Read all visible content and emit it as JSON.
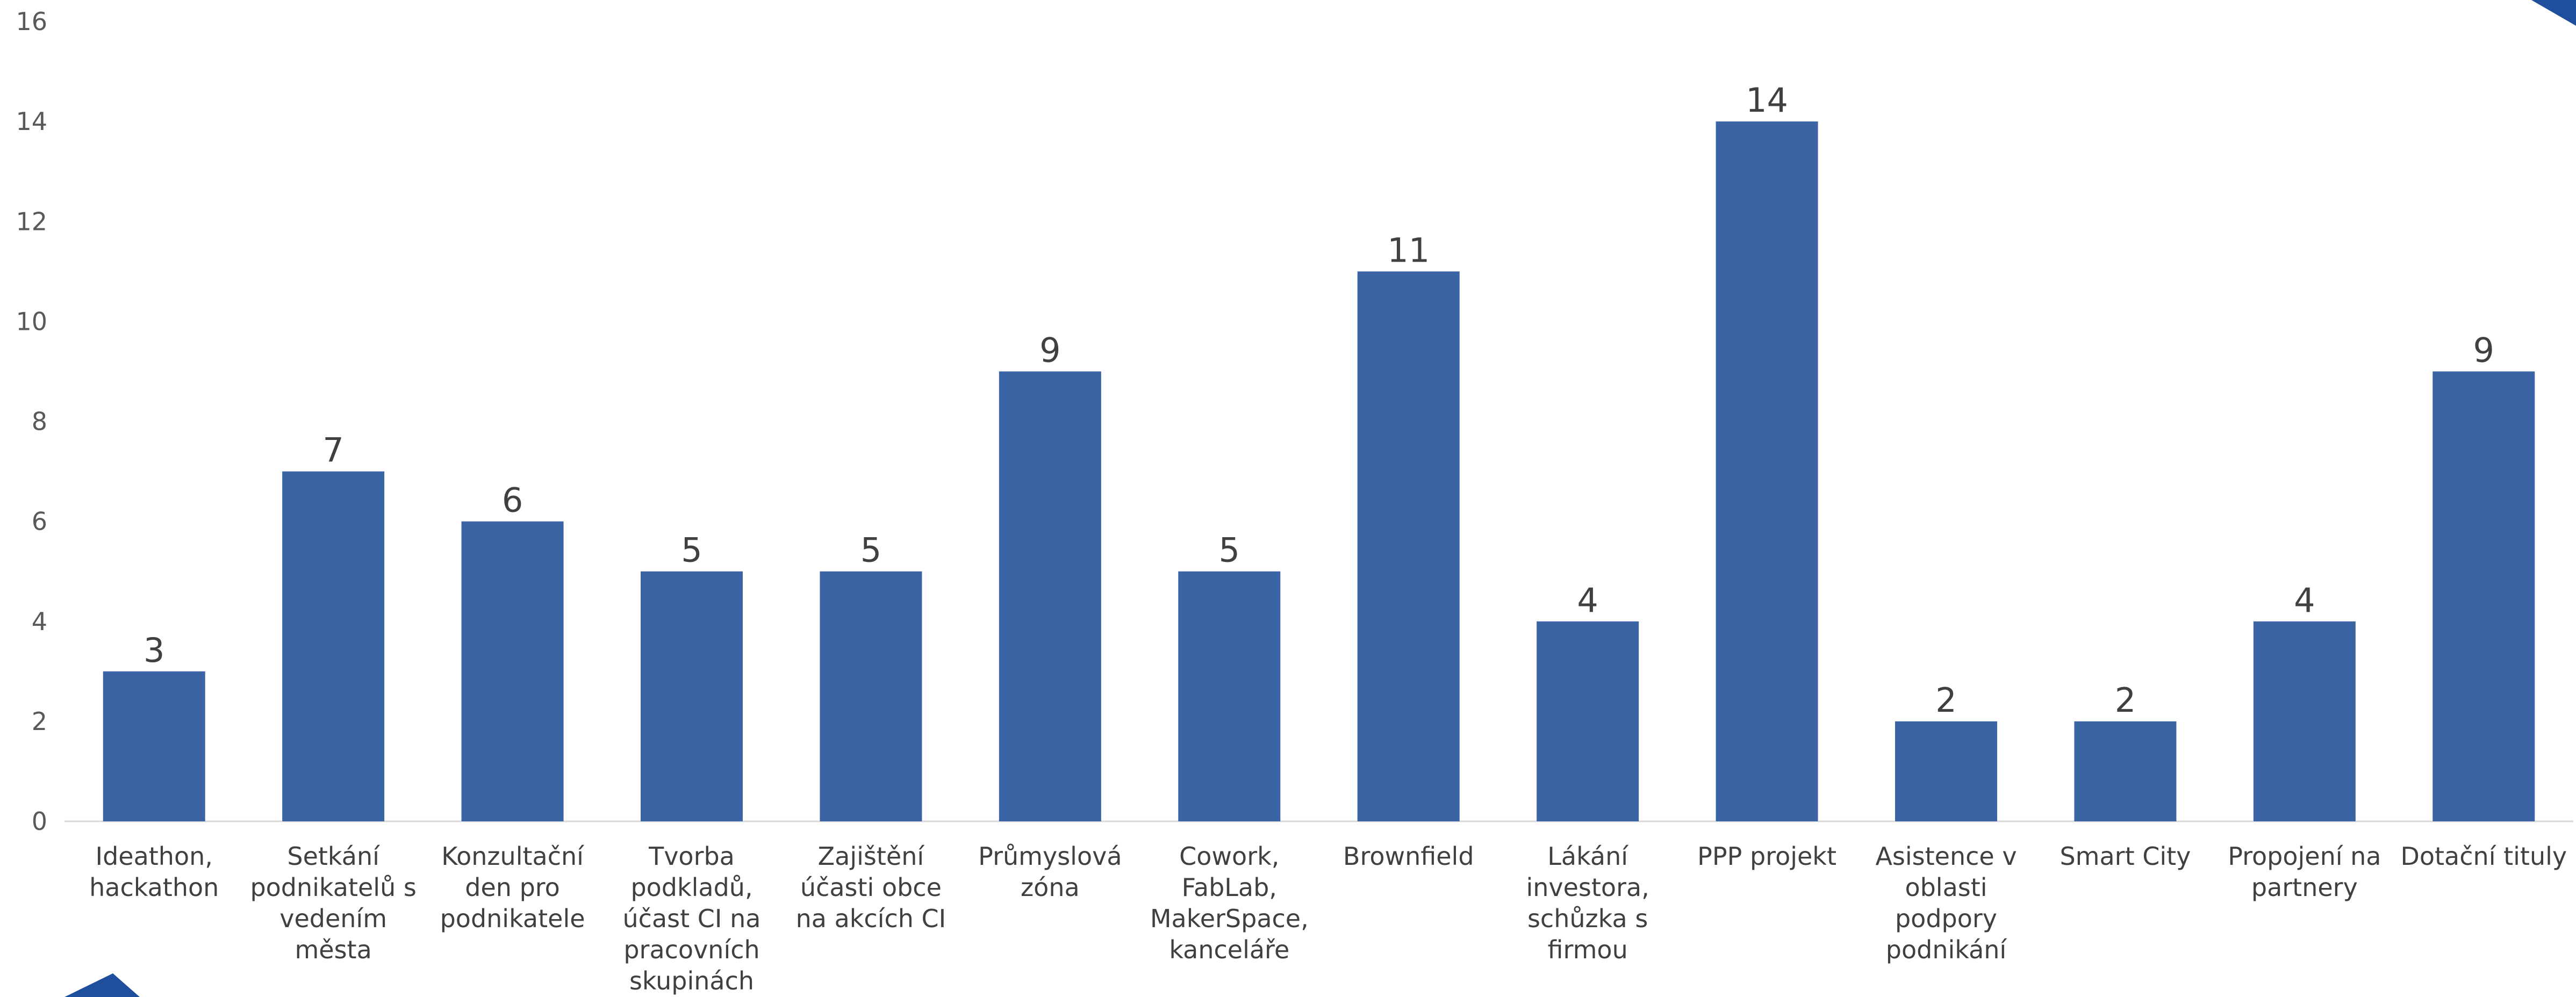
{
  "chart_data": {
    "type": "bar",
    "categories": [
      [
        "Ideathon,",
        "hackathon"
      ],
      [
        "Setkání",
        "podnikatelů s",
        "vedením",
        "města"
      ],
      [
        "Konzultační",
        "den pro",
        "podnikatele"
      ],
      [
        "Tvorba",
        "podkladů,",
        "účast CI na",
        "pracovních",
        "skupinách"
      ],
      [
        "Zajištění",
        "účasti obce",
        "na akcích CI"
      ],
      [
        "Průmyslová",
        "zóna"
      ],
      [
        "Cowork,",
        "FabLab,",
        "MakerSpace,",
        "kanceláře"
      ],
      [
        "Brownfield"
      ],
      [
        "Lákání",
        "investora,",
        "schůzka s",
        "firmou"
      ],
      [
        "PPP projekt"
      ],
      [
        "Asistence v",
        "oblasti",
        "podpory",
        "podnikání"
      ],
      [
        "Smart City"
      ],
      [
        "Propojení na",
        "partnery"
      ],
      [
        "Dotační tituly"
      ]
    ],
    "values": [
      3,
      7,
      6,
      5,
      5,
      9,
      5,
      11,
      4,
      14,
      2,
      2,
      4,
      9
    ],
    "y_ticks": [
      "0",
      "2",
      "4",
      "6",
      "8",
      "10",
      "12",
      "14",
      "16"
    ],
    "ylim": [
      0,
      16
    ],
    "grid": false,
    "legend": "none",
    "bar_color": "#3B64A5",
    "corner_color": "#1F4E9C"
  }
}
